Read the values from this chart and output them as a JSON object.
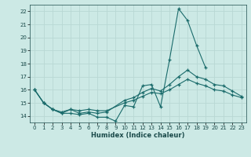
{
  "background_color": "#cce9e5",
  "grid_color": "#b8d8d4",
  "line_color": "#1a6b6b",
  "xlim": [
    -0.5,
    23.5
  ],
  "ylim": [
    13.5,
    22.5
  ],
  "xticks": [
    0,
    1,
    2,
    3,
    4,
    5,
    6,
    7,
    8,
    9,
    10,
    11,
    12,
    13,
    14,
    15,
    16,
    17,
    18,
    19,
    20,
    21,
    22,
    23
  ],
  "yticks": [
    14,
    15,
    16,
    17,
    18,
    19,
    20,
    21,
    22
  ],
  "xlabel": "Humidex (Indice chaleur)",
  "series": [
    {
      "x": [
        0,
        1,
        2,
        3,
        4,
        5,
        6,
        7,
        8,
        9,
        10,
        11,
        12,
        13,
        14,
        15,
        16,
        17,
        18,
        19
      ],
      "y": [
        16,
        15,
        14.5,
        14.2,
        14.2,
        14.1,
        14.2,
        13.9,
        13.9,
        13.6,
        14.8,
        14.7,
        16.3,
        16.4,
        14.7,
        18.3,
        22.2,
        21.3,
        19.4,
        17.7
      ]
    },
    {
      "x": [
        0,
        1,
        2,
        3,
        4,
        5,
        6,
        7,
        8,
        10,
        11,
        12,
        13,
        14,
        15,
        16,
        17,
        18,
        19,
        20,
        21,
        22,
        23
      ],
      "y": [
        16,
        15,
        14.5,
        14.2,
        14.5,
        14.2,
        14.3,
        14.2,
        14.3,
        15.2,
        15.4,
        15.8,
        16.1,
        15.9,
        16.4,
        17.0,
        17.5,
        17.0,
        16.8,
        16.4,
        16.3,
        15.9,
        15.5
      ]
    },
    {
      "x": [
        0,
        1,
        2,
        3,
        4,
        5,
        6,
        7,
        8,
        10,
        11,
        12,
        13,
        14,
        15,
        16,
        17,
        18,
        19,
        20,
        21,
        22,
        23
      ],
      "y": [
        16,
        15,
        14.5,
        14.3,
        14.5,
        14.4,
        14.5,
        14.4,
        14.4,
        15.0,
        15.2,
        15.5,
        15.8,
        15.7,
        16.0,
        16.4,
        16.8,
        16.5,
        16.3,
        16.0,
        15.9,
        15.6,
        15.4
      ]
    }
  ]
}
